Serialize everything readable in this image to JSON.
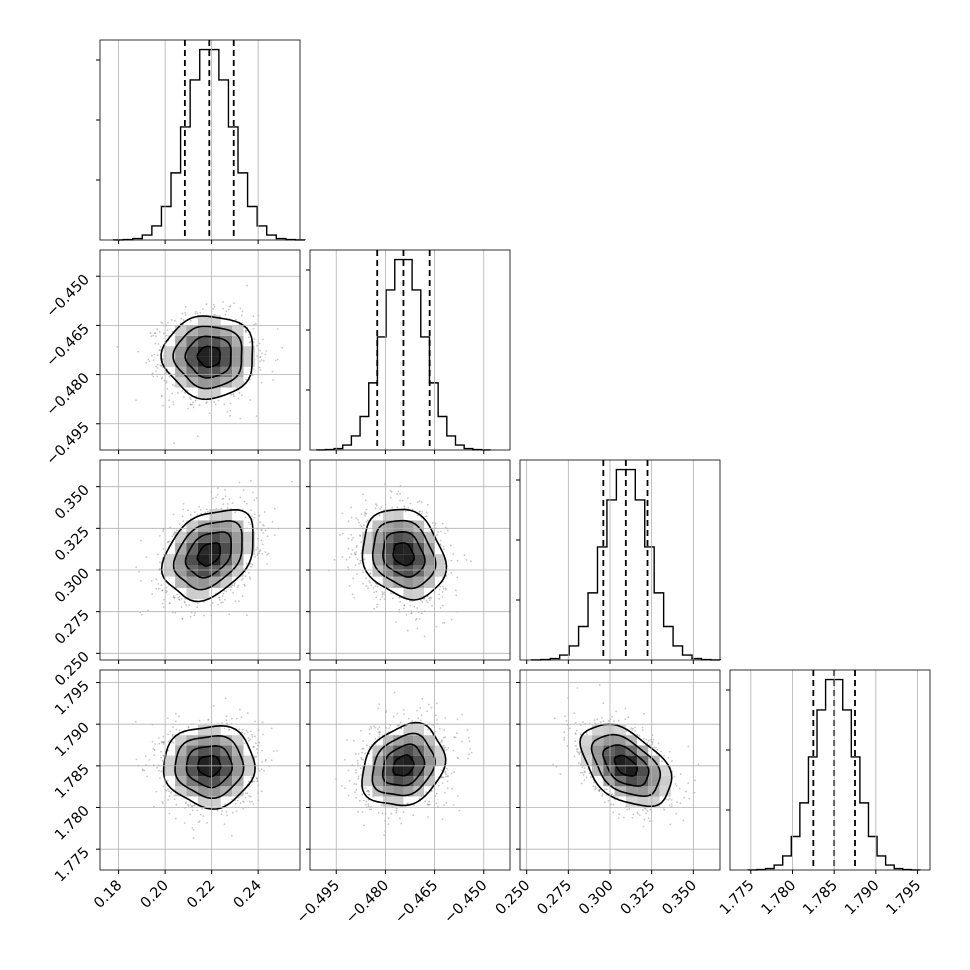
{
  "chart_data": {
    "type": "corner",
    "grid": true,
    "parameters": [
      {
        "mean": 0.219,
        "std": 0.0098,
        "lim": [
          0.172,
          0.258
        ],
        "ticks": [
          "0.18",
          "0.20",
          "0.22",
          "0.24"
        ],
        "tick_values": [
          0.18,
          0.2,
          0.22,
          0.24
        ],
        "quantiles": [
          0.2085,
          0.219,
          0.2295
        ]
      },
      {
        "mean": -0.4745,
        "std": 0.0063,
        "lim": [
          -0.503,
          -0.442
        ],
        "ticks": [
          "−0.495",
          "−0.480",
          "−0.465",
          "−0.450"
        ],
        "tick_values": [
          -0.495,
          -0.48,
          -0.465,
          -0.45
        ],
        "quantiles": [
          -0.4825,
          -0.4745,
          -0.4665
        ]
      },
      {
        "mean": 0.3095,
        "std": 0.0135,
        "lim": [
          0.246,
          0.366
        ],
        "ticks": [
          "0.250",
          "0.275",
          "0.300",
          "0.325",
          "0.350"
        ],
        "tick_values": [
          0.25,
          0.275,
          0.3,
          0.325,
          0.35
        ],
        "quantiles": [
          0.296,
          0.3095,
          0.3225
        ]
      },
      {
        "mean": 1.785,
        "std": 0.00245,
        "lim": [
          1.7725,
          1.7965
        ],
        "ticks": [
          "1.775",
          "1.780",
          "1.785",
          "1.790",
          "1.795"
        ],
        "tick_values": [
          1.775,
          1.78,
          1.785,
          1.79,
          1.795
        ],
        "quantiles": [
          1.7825,
          1.785,
          1.7875
        ]
      }
    ],
    "correlations": [
      [
        1,
        0,
        0.32,
        0
      ],
      [
        0,
        1,
        -0.2,
        0.22
      ],
      [
        0.32,
        -0.2,
        1,
        -0.45
      ],
      [
        0,
        0.22,
        -0.45,
        1
      ]
    ],
    "histogram_bins": 20,
    "contour_levels_sigma": [
      0.5,
      1.0,
      1.5,
      2.0
    ],
    "scatter_points_per_panel": 1500,
    "colors": {
      "line": "#000000",
      "points": "#808080",
      "grid": "#b0b0b0"
    }
  }
}
